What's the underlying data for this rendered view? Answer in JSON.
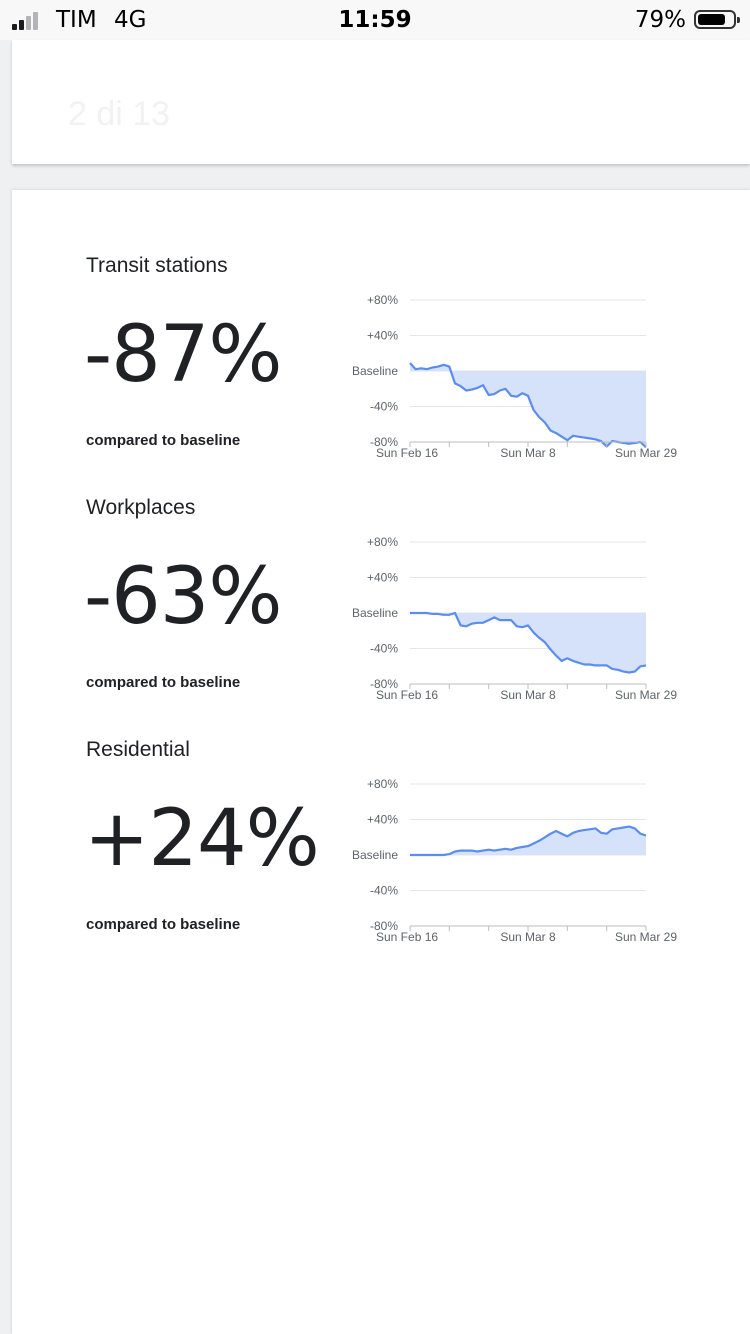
{
  "status_bar": {
    "carrier": "TIM",
    "network": "4G",
    "time": "11:59",
    "battery": "79%",
    "battery_level": 0.79
  },
  "pager": {
    "label": "2 di 13"
  },
  "chart_axis": {
    "y_labels": [
      "+80%",
      "+40%",
      "Baseline",
      "-40%",
      "-80%"
    ],
    "x_labels": [
      "Sun Feb 16",
      "Sun Mar 8",
      "Sun Mar 29"
    ]
  },
  "colors": {
    "line": "#5b8def",
    "fill": "#d6e2fa",
    "grid": "#e6e6e6",
    "axis_text": "#5f6368"
  },
  "metrics": [
    {
      "title": "Transit stations",
      "value": "-87%",
      "caption": "compared to baseline",
      "chart_data": {
        "type": "area",
        "ylim": [
          -80,
          80
        ],
        "y": [
          9,
          2,
          3,
          2,
          4,
          5,
          7,
          5,
          -14,
          -17,
          -22,
          -21,
          -19,
          -16,
          -27,
          -26,
          -22,
          -20,
          -28,
          -29,
          -25,
          -28,
          -44,
          -52,
          -58,
          -67,
          -70,
          -74,
          -78,
          -73,
          -74,
          -75,
          -76,
          -77,
          -79,
          -85,
          -79,
          -80,
          -81,
          -82,
          -81,
          -80,
          -86
        ]
      }
    },
    {
      "title": "Workplaces",
      "value": "-63%",
      "caption": "compared to baseline",
      "chart_data": {
        "type": "area",
        "ylim": [
          -80,
          80
        ],
        "y": [
          0,
          0,
          0,
          0,
          -1,
          -1,
          -2,
          -2,
          0,
          -14,
          -15,
          -12,
          -11,
          -11,
          -8,
          -5,
          -8,
          -8,
          -8,
          -15,
          -16,
          -14,
          -22,
          -28,
          -33,
          -41,
          -48,
          -54,
          -51,
          -54,
          -56,
          -58,
          -58,
          -59,
          -59,
          -59,
          -63,
          -64,
          -66,
          -67,
          -66,
          -60,
          -59
        ]
      }
    },
    {
      "title": "Residential",
      "value": "+24%",
      "caption": "compared to baseline",
      "chart_data": {
        "type": "area",
        "ylim": [
          -80,
          80
        ],
        "y": [
          0,
          0,
          0,
          0,
          0,
          0,
          0,
          1,
          4,
          5,
          5,
          5,
          4,
          5,
          6,
          5,
          6,
          7,
          6,
          8,
          9,
          10,
          13,
          16,
          20,
          24,
          27,
          24,
          21,
          25,
          27,
          28,
          29,
          30,
          25,
          24,
          29,
          30,
          31,
          32,
          30,
          24,
          22
        ]
      }
    }
  ]
}
